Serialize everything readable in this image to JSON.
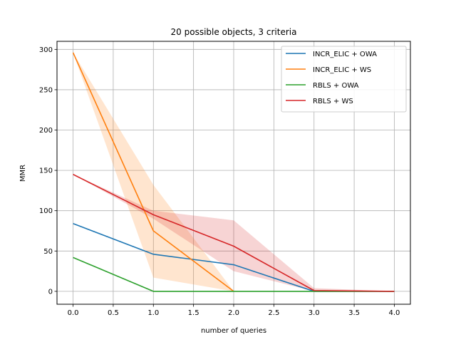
{
  "chart_data": {
    "type": "line",
    "title": "20 possible objects, 3 criteria",
    "xlabel": "number of queries",
    "ylabel": "MMR",
    "xlim": [
      -0.2,
      4.2
    ],
    "ylim": [
      -16,
      310
    ],
    "xticks": [
      0.0,
      0.5,
      1.0,
      1.5,
      2.0,
      2.5,
      3.0,
      3.5,
      4.0
    ],
    "xtick_labels": [
      "0.0",
      "0.5",
      "1.0",
      "1.5",
      "2.0",
      "2.5",
      "3.0",
      "3.5",
      "4.0"
    ],
    "yticks": [
      0,
      50,
      100,
      150,
      200,
      250,
      300
    ],
    "ytick_labels": [
      "0",
      "50",
      "100",
      "150",
      "200",
      "250",
      "300"
    ],
    "grid": true,
    "legend_position": "top-right",
    "series": [
      {
        "name": "INCR_ELIC + OWA",
        "color": "#1f77b4",
        "x": [
          0,
          1,
          2,
          3,
          4
        ],
        "y": [
          84,
          46,
          33,
          0,
          0
        ]
      },
      {
        "name": "INCR_ELIC + WS",
        "color": "#ff7f0e",
        "x": [
          0,
          1,
          2
        ],
        "y": [
          296,
          75,
          0
        ],
        "band_lower": [
          296,
          17,
          0
        ],
        "band_upper": [
          296,
          132,
          0
        ]
      },
      {
        "name": "RBLS + OWA",
        "color": "#2ca02c",
        "x": [
          0,
          1,
          2,
          3,
          4
        ],
        "y": [
          42,
          0,
          0,
          0,
          0
        ]
      },
      {
        "name": "RBLS + WS",
        "color": "#d62728",
        "x": [
          0,
          1,
          2,
          3,
          4
        ],
        "y": [
          145,
          95,
          56,
          1,
          0
        ],
        "band_lower": [
          145,
          90,
          25,
          0,
          0
        ],
        "band_upper": [
          145,
          100,
          88,
          4,
          0
        ]
      }
    ]
  }
}
